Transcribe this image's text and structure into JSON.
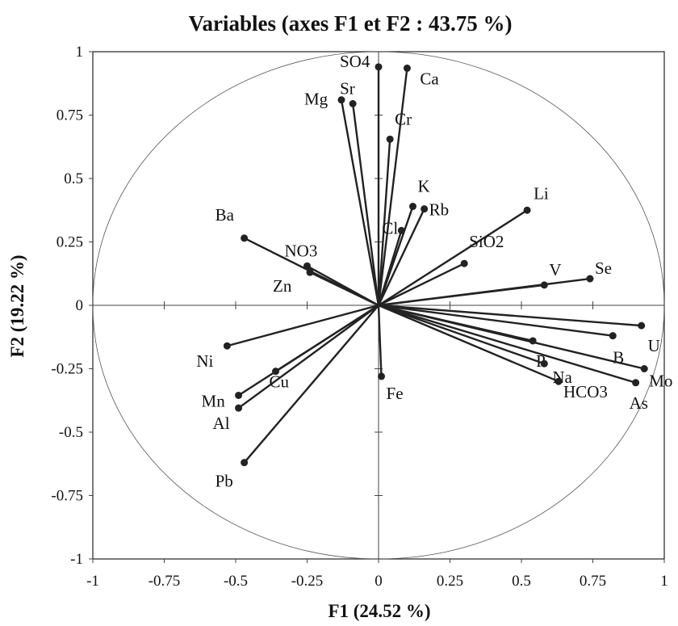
{
  "chart_data": {
    "type": "scatter",
    "title": "Variables (axes F1 et F2 : 43.75 %)",
    "xlabel": "F1 (24.52 %)",
    "ylabel": "F2 (19.22 %)",
    "xlim": [
      -1,
      1
    ],
    "ylim": [
      -1,
      1
    ],
    "xticks": [
      -1,
      -0.75,
      -0.5,
      -0.25,
      0,
      0.25,
      0.5,
      0.75,
      1
    ],
    "yticks": [
      -1,
      -0.75,
      -0.5,
      -0.25,
      0,
      0.25,
      0.5,
      0.75,
      1
    ],
    "xtick_labels": [
      "-1",
      "-0.75",
      "-0.5",
      "-0.25",
      "0",
      "0.25",
      "0.5",
      "0.75",
      "1"
    ],
    "ytick_labels": [
      "-1",
      "-0.75",
      "-0.5",
      "-0.25",
      "0",
      "0.25",
      "0.5",
      "0.75",
      "1"
    ],
    "correlation_circle": true,
    "points": [
      {
        "name": "SO4",
        "x": 0.0,
        "y": 0.94
      },
      {
        "name": "Ca",
        "x": 0.1,
        "y": 0.935
      },
      {
        "name": "Sr",
        "x": -0.09,
        "y": 0.795
      },
      {
        "name": "Mg",
        "x": -0.13,
        "y": 0.81
      },
      {
        "name": "Cr",
        "x": 0.04,
        "y": 0.655
      },
      {
        "name": "K",
        "x": 0.12,
        "y": 0.39
      },
      {
        "name": "Rb",
        "x": 0.16,
        "y": 0.38
      },
      {
        "name": "Cl",
        "x": 0.08,
        "y": 0.295
      },
      {
        "name": "Li",
        "x": 0.52,
        "y": 0.375
      },
      {
        "name": "SiO2",
        "x": 0.3,
        "y": 0.165
      },
      {
        "name": "V",
        "x": 0.58,
        "y": 0.08
      },
      {
        "name": "Se",
        "x": 0.74,
        "y": 0.105
      },
      {
        "name": "Ba",
        "x": -0.47,
        "y": 0.265
      },
      {
        "name": "NO3",
        "x": -0.25,
        "y": 0.155
      },
      {
        "name": "Zn",
        "x": -0.24,
        "y": 0.13
      },
      {
        "name": "U",
        "x": 0.92,
        "y": -0.08
      },
      {
        "name": "B",
        "x": 0.82,
        "y": -0.12
      },
      {
        "name": "Mo",
        "x": 0.93,
        "y": -0.25
      },
      {
        "name": "As",
        "x": 0.9,
        "y": -0.305
      },
      {
        "name": "P",
        "x": 0.54,
        "y": -0.14
      },
      {
        "name": "Na",
        "x": 0.58,
        "y": -0.23
      },
      {
        "name": "HCO3",
        "x": 0.63,
        "y": -0.3
      },
      {
        "name": "Fe",
        "x": 0.01,
        "y": -0.28
      },
      {
        "name": "Ni",
        "x": -0.53,
        "y": -0.16
      },
      {
        "name": "Cu",
        "x": -0.36,
        "y": -0.26
      },
      {
        "name": "Mn",
        "x": -0.49,
        "y": -0.355
      },
      {
        "name": "Al",
        "x": -0.49,
        "y": -0.405
      },
      {
        "name": "Pb",
        "x": -0.47,
        "y": -0.62
      }
    ]
  }
}
